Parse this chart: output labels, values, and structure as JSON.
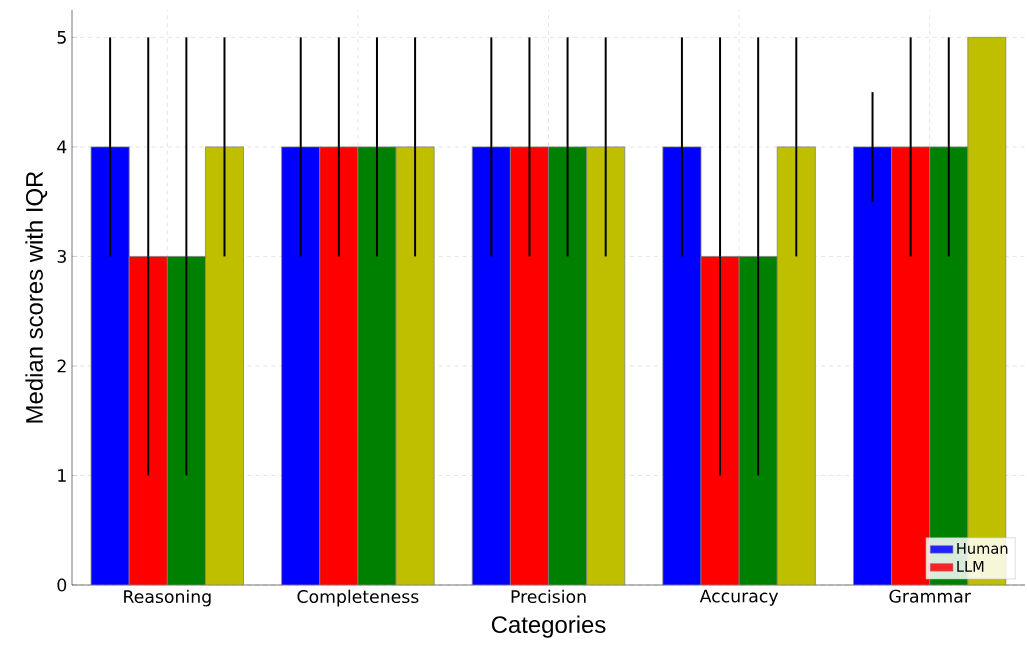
{
  "chart_data": {
    "type": "bar",
    "xlabel": "Categories",
    "ylabel": "Median scores with IQR",
    "categories": [
      "Reasoning",
      "Completeness",
      "Precision",
      "Accuracy",
      "Grammar"
    ],
    "series": [
      {
        "name": "Human",
        "color": "#0000ff",
        "values": [
          4,
          4,
          4,
          4,
          4
        ],
        "errors": [
          [
            3,
            5
          ],
          [
            3,
            5
          ],
          [
            3,
            5
          ],
          [
            3,
            5
          ],
          [
            3.5,
            4.5
          ]
        ]
      },
      {
        "name": "LLM",
        "color": "#ff0000",
        "values": [
          3,
          4,
          4,
          3,
          4
        ],
        "errors": [
          [
            1,
            5
          ],
          [
            3,
            5
          ],
          [
            3,
            5
          ],
          [
            1,
            5
          ],
          [
            3,
            5
          ]
        ]
      },
      {
        "color": "#008000",
        "values": [
          3,
          4,
          4,
          3,
          4
        ],
        "errors": [
          [
            1,
            5
          ],
          [
            3,
            5
          ],
          [
            3,
            5
          ],
          [
            1,
            5
          ],
          [
            3,
            5
          ]
        ]
      },
      {
        "color": "#bfbf00",
        "values": [
          4,
          4,
          4,
          4,
          5
        ],
        "errors": [
          [
            3,
            5
          ],
          [
            3,
            5
          ],
          [
            3,
            5
          ],
          [
            3,
            5
          ],
          null
        ]
      }
    ],
    "ylim": [
      0,
      5.25
    ],
    "yticks": [
      0,
      1,
      2,
      3,
      4,
      5
    ],
    "grid": true,
    "legend": "bottom right"
  }
}
